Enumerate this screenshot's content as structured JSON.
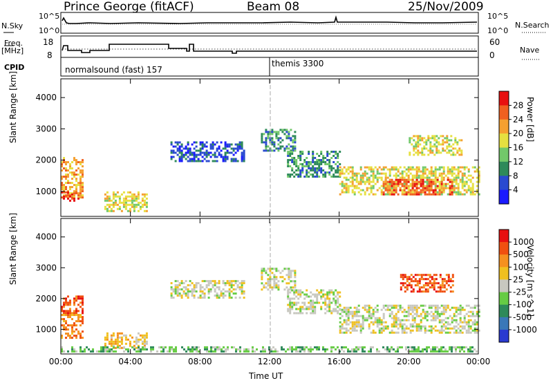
{
  "header": {
    "title": "Prince George (fitACF)",
    "beam": "Beam 08",
    "date": "25/Nov/2009"
  },
  "nsky_panel": {
    "left_label": "N.Sky",
    "left_ticks": [
      "10^5",
      "10^0"
    ],
    "right_label": "N.Search",
    "right_ticks": [
      "10^5",
      "10^0"
    ]
  },
  "freq_panel": {
    "left_label_line1": "Freq.",
    "left_label_line2": "[MHz]",
    "left_ticks": [
      "18",
      "8"
    ],
    "right_label": "Nave",
    "right_ticks": [
      "60",
      "0"
    ]
  },
  "cpid_panel": {
    "label": "CPID",
    "program1": "normalsound (fast) 157",
    "program2": "themis 3300"
  },
  "chart_data": [
    {
      "type": "heatmap",
      "name": "power",
      "ylabel": "Slant Range [km]",
      "ylim": [
        200,
        4600
      ],
      "yticks": [
        1000,
        2000,
        3000,
        4000
      ],
      "colorbar_label": "Power [dB]",
      "colorbar_ticks": [
        "4",
        "8",
        "12",
        "16",
        "20",
        "24",
        "28"
      ],
      "colorbar_colors": [
        "#1a1aff",
        "#2a4ad0",
        "#2e8a5a",
        "#72c86a",
        "#e6e040",
        "#f5a030",
        "#f06020",
        "#e81010"
      ],
      "regions": [
        {
          "t0": 0.0,
          "t1": 1.2,
          "r0": 800,
          "r1": 2100,
          "level": 5
        },
        {
          "t0": 0.0,
          "t1": 1.0,
          "r0": 700,
          "r1": 1000,
          "level": 7
        },
        {
          "t0": 2.5,
          "t1": 5.0,
          "r0": 400,
          "r1": 1000,
          "level": 4
        },
        {
          "t0": 6.3,
          "t1": 10.5,
          "r0": 2000,
          "r1": 2600,
          "level": 1
        },
        {
          "t0": 11.5,
          "t1": 13.5,
          "r0": 2300,
          "r1": 3000,
          "level": 2
        },
        {
          "t0": 13.0,
          "t1": 16.0,
          "r0": 1500,
          "r1": 2300,
          "level": 2
        },
        {
          "t0": 16.0,
          "t1": 24.0,
          "r0": 900,
          "r1": 1800,
          "level": 4
        },
        {
          "t0": 18.5,
          "t1": 22.5,
          "r0": 900,
          "r1": 1400,
          "level": 6
        },
        {
          "t0": 20.0,
          "t1": 23.0,
          "r0": 2200,
          "r1": 2800,
          "level": 4
        }
      ]
    },
    {
      "type": "heatmap",
      "name": "velocity",
      "ylabel": "Slant Range [km]",
      "ylim": [
        200,
        4600
      ],
      "yticks": [
        1000,
        2000,
        3000,
        4000
      ],
      "colorbar_label": "Velocity [m s^-1]",
      "colorbar_ticks": [
        "1000",
        "500",
        "100",
        "25",
        "-25",
        "-100",
        "-500",
        "-1000"
      ],
      "colorbar_colors": [
        "#2a3ad0",
        "#3a78b8",
        "#2e8a5a",
        "#66cc44",
        "#c8c8c0",
        "#f0c020",
        "#f59020",
        "#f05010",
        "#e81010"
      ],
      "regions": [
        {
          "t0": 0.0,
          "t1": 1.2,
          "r0": 1500,
          "r1": 2100,
          "level": 7
        },
        {
          "t0": 0.0,
          "t1": 1.2,
          "r0": 700,
          "r1": 1500,
          "level": 6
        },
        {
          "t0": 2.5,
          "t1": 5.0,
          "r0": 400,
          "r1": 900,
          "level": 5
        },
        {
          "t0": 6.3,
          "t1": 10.5,
          "r0": 2000,
          "r1": 2600,
          "level": 4
        },
        {
          "t0": 11.5,
          "t1": 13.5,
          "r0": 2300,
          "r1": 3000,
          "level": 4
        },
        {
          "t0": 13.0,
          "t1": 16.0,
          "r0": 1500,
          "r1": 2300,
          "level": 4
        },
        {
          "t0": 16.0,
          "t1": 24.0,
          "r0": 900,
          "r1": 1800,
          "level": 4
        },
        {
          "t0": 19.5,
          "t1": 22.5,
          "r0": 2200,
          "r1": 2800,
          "level": 7
        },
        {
          "t0": 0.0,
          "t1": 24.0,
          "r0": 250,
          "r1": 450,
          "level": 3
        }
      ]
    }
  ],
  "time_axis": {
    "ticks": [
      "00:00",
      "04:00",
      "08:00",
      "12:00",
      "16:00",
      "20:00",
      "00:00"
    ],
    "label": "Time UT"
  }
}
